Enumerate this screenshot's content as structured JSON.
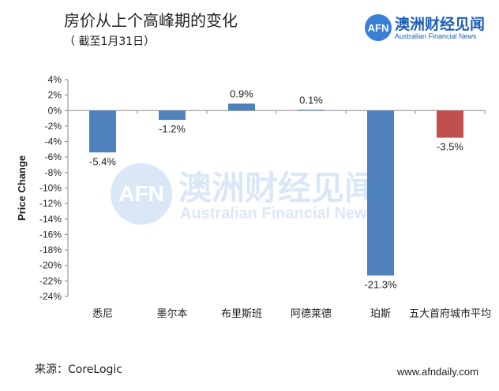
{
  "header": {
    "title": "房价从上个高峰期的变化",
    "subtitle": "（ 截至1月31日）"
  },
  "brand": {
    "logo_text": "AFN",
    "name_cn": "澳洲财经见闻",
    "name_en": "Australian Financial News"
  },
  "footer": {
    "source": "来源：CoreLogic",
    "website": "www.afndaily.com"
  },
  "colors": {
    "bar_primary": "#4f81bd",
    "bar_highlight": "#c0504d",
    "brand_blue": "#1e5fb8"
  },
  "chart_data": {
    "type": "bar",
    "ylabel": "Price Change",
    "ylim": [
      -24,
      4
    ],
    "yticks": [
      4,
      2,
      0,
      -2,
      -4,
      -6,
      -8,
      -10,
      -12,
      -14,
      -16,
      -18,
      -20,
      -22,
      -24
    ],
    "ytick_labels": [
      "4%",
      "2%",
      "0%",
      "-2%",
      "-4%",
      "-6%",
      "-8%",
      "-10%",
      "-12%",
      "-14%",
      "-16%",
      "-18%",
      "-20%",
      "-22%",
      "-24%"
    ],
    "categories": [
      "悉尼",
      "墨尔本",
      "布里斯班",
      "阿德莱德",
      "珀斯",
      "五大首府城市平均"
    ],
    "values": [
      -5.4,
      -1.2,
      0.9,
      0.1,
      -21.3,
      -3.5
    ],
    "value_labels": [
      "-5.4%",
      "-1.2%",
      "0.9%",
      "0.1%",
      "-21.3%",
      "-3.5%"
    ],
    "highlight_index": 5,
    "grid": false,
    "legend": "none"
  }
}
